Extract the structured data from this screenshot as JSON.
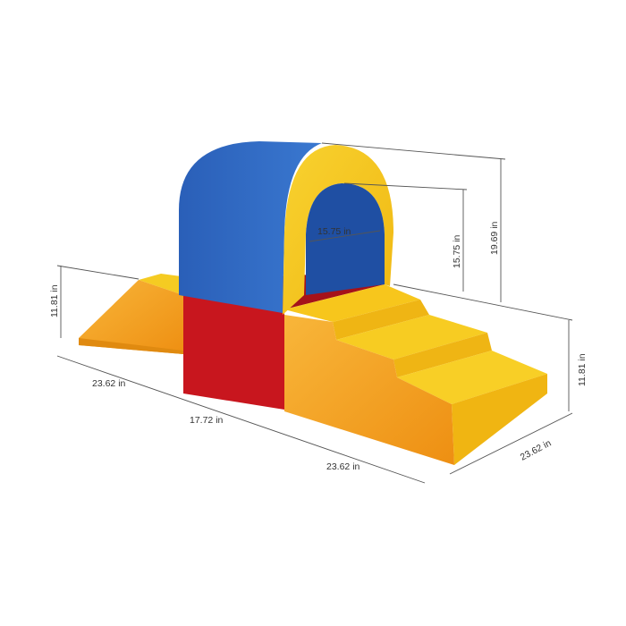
{
  "product": {
    "colors": {
      "blue": "#2a5fb8",
      "yellow": "#f6c81c",
      "red": "#c8161e",
      "orange": "#f5a31f"
    }
  },
  "dimensions": {
    "arch_inner_width": "15.75 in",
    "arch_inner_height": "15.75 in",
    "arch_total_height": "19.69 in",
    "ramp_height": "11.81 in",
    "steps_height": "11.81 in",
    "ramp_length": "23.62 in",
    "cube_length": "17.72 in",
    "steps_length": "23.62 in",
    "depth": "23.62 in"
  }
}
